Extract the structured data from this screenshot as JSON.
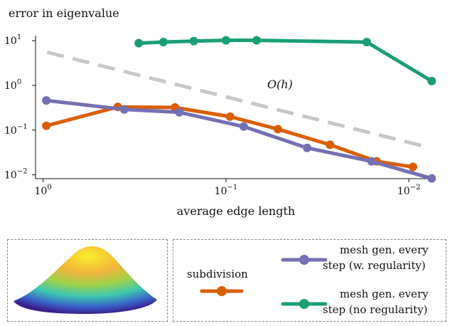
{
  "chart_data": {
    "type": "line",
    "ylabel": "error in eigenvalue",
    "xlabel": "average edge length",
    "x_scale": "log",
    "y_scale": "log",
    "x_reversed": true,
    "xlim": [
      1.1,
      0.0072
    ],
    "ylim": [
      0.0082,
      13
    ],
    "x_ticks": [
      {
        "value": 1,
        "base": "10",
        "exp": "0"
      },
      {
        "value": 0.1,
        "base": "10",
        "exp": "−1"
      },
      {
        "value": 0.01,
        "base": "10",
        "exp": "−2"
      }
    ],
    "y_ticks": [
      {
        "value": 10,
        "base": "10",
        "exp": "1"
      },
      {
        "value": 1,
        "base": "10",
        "exp": "0"
      },
      {
        "value": 0.1,
        "base": "10",
        "exp": "−1"
      },
      {
        "value": 0.01,
        "base": "10",
        "exp": "−2"
      }
    ],
    "reference_line": {
      "label": "O(h)",
      "color": "#c8c8c8",
      "x": [
        0.95,
        0.0085
      ],
      "y": [
        5.5,
        0.045
      ]
    },
    "series": [
      {
        "name": "subdivision",
        "color": "#d95f02",
        "x": [
          0.96,
          0.39,
          0.19,
          0.095,
          0.052,
          0.027,
          0.015,
          0.0095
        ],
        "y": [
          0.125,
          0.33,
          0.32,
          0.2,
          0.105,
          0.047,
          0.02,
          0.015
        ]
      },
      {
        "name": "mesh gen. every step (w. regularity)",
        "color": "#7570b3",
        "x": [
          0.96,
          0.36,
          0.18,
          0.08,
          0.036,
          0.016,
          0.0075
        ],
        "y": [
          0.46,
          0.29,
          0.25,
          0.12,
          0.04,
          0.02,
          0.0083
        ]
      },
      {
        "name": "mesh gen. every step (no regularity)",
        "color": "#1b9e77",
        "x": [
          0.3,
          0.22,
          0.15,
          0.1,
          0.068,
          0.017,
          0.0075
        ],
        "y": [
          8.8,
          9.3,
          9.8,
          10.2,
          10.2,
          9.3,
          1.25
        ]
      }
    ]
  },
  "legend": {
    "subdivision": "subdivision",
    "w_reg_line1": "mesh gen. every",
    "w_reg_line2": "step (w. regularity)",
    "no_reg_line1": "mesh gen. every",
    "no_reg_line2": "step (no regularity)"
  }
}
